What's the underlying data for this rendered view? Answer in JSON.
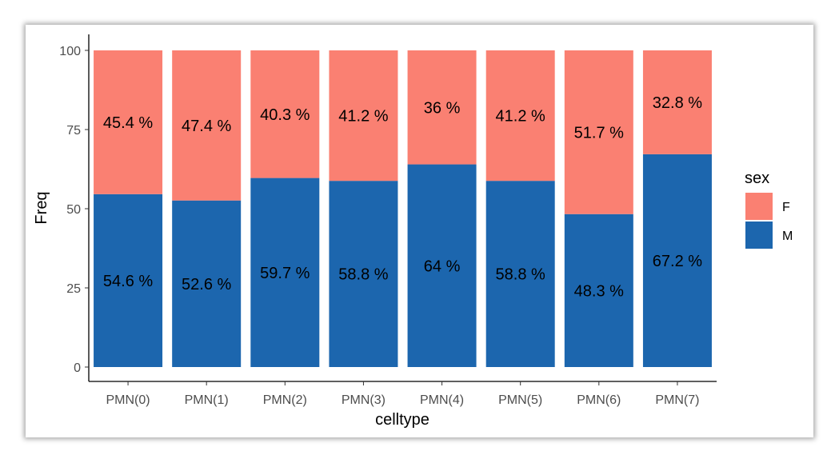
{
  "chart_data": {
    "type": "bar",
    "stacked": true,
    "xlabel": "celltype",
    "ylabel": "Freq",
    "ylim": [
      0,
      100
    ],
    "yticks": [
      "0",
      "25",
      "50",
      "75",
      "100"
    ],
    "categories": [
      "PMN(0)",
      "PMN(1)",
      "PMN(2)",
      "PMN(3)",
      "PMN(4)",
      "PMN(5)",
      "PMN(6)",
      "PMN(7)"
    ],
    "series": [
      {
        "name": "M",
        "color": "#1c66ae",
        "values": [
          54.6,
          52.6,
          59.7,
          58.8,
          64,
          58.8,
          48.3,
          67.2
        ],
        "labels": [
          "54.6 %",
          "52.6 %",
          "59.7 %",
          "58.8 %",
          "64 %",
          "58.8 %",
          "48.3 %",
          "67.2 %"
        ]
      },
      {
        "name": "F",
        "color": "#fa8072",
        "values": [
          45.4,
          47.4,
          40.3,
          41.2,
          36,
          41.2,
          51.7,
          32.8
        ],
        "labels": [
          "45.4 %",
          "47.4 %",
          "40.3 %",
          "41.2 %",
          "36 %",
          "41.2 %",
          "51.7 %",
          "32.8 %"
        ]
      }
    ],
    "legend": {
      "title": "sex",
      "position": "right",
      "entries": [
        "F",
        "M"
      ]
    },
    "grid": false
  }
}
